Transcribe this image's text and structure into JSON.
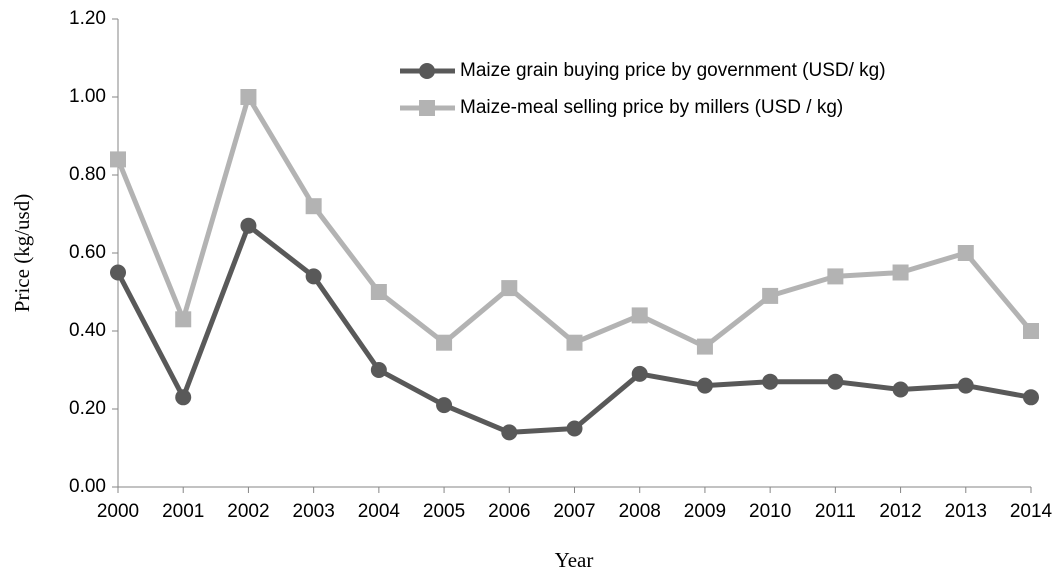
{
  "chart_data": {
    "type": "line",
    "x_label": "Year",
    "y_label": "Price (kg/usd)",
    "x": [
      2000,
      2001,
      2002,
      2003,
      2004,
      2005,
      2006,
      2007,
      2008,
      2009,
      2010,
      2011,
      2012,
      2013,
      2014
    ],
    "xlim": [
      2000,
      2014
    ],
    "xticks": [
      2000,
      2001,
      2002,
      2003,
      2004,
      2005,
      2006,
      2007,
      2008,
      2009,
      2010,
      2011,
      2012,
      2013,
      2014
    ],
    "ylim": [
      0,
      1.2
    ],
    "yticks": [
      {
        "value": 0,
        "label": "0.00"
      },
      {
        "value": 0.2,
        "label": "0.20"
      },
      {
        "value": 0.4,
        "label": "0.40"
      },
      {
        "value": 0.6,
        "label": "0.60"
      },
      {
        "value": 0.8,
        "label": "0.80"
      },
      {
        "value": 1.0,
        "label": "1.00"
      },
      {
        "value": 1.2,
        "label": "1.20"
      }
    ],
    "grid": false,
    "legend": "top-right",
    "series": [
      {
        "name": "Maize grain buying price by government (USD/ kg)",
        "color": "#595959",
        "marker": "circle",
        "values": [
          0.55,
          0.23,
          0.67,
          0.54,
          0.3,
          0.21,
          0.14,
          0.15,
          0.29,
          0.26,
          0.27,
          0.27,
          0.25,
          0.26,
          0.23
        ]
      },
      {
        "name": "Maize-meal selling price by millers (USD / kg)",
        "color": "#b3b3b3",
        "marker": "square",
        "values": [
          0.84,
          0.43,
          1.0,
          0.72,
          0.5,
          0.37,
          0.51,
          0.37,
          0.44,
          0.36,
          0.49,
          0.54,
          0.55,
          0.6,
          0.4
        ]
      }
    ]
  }
}
